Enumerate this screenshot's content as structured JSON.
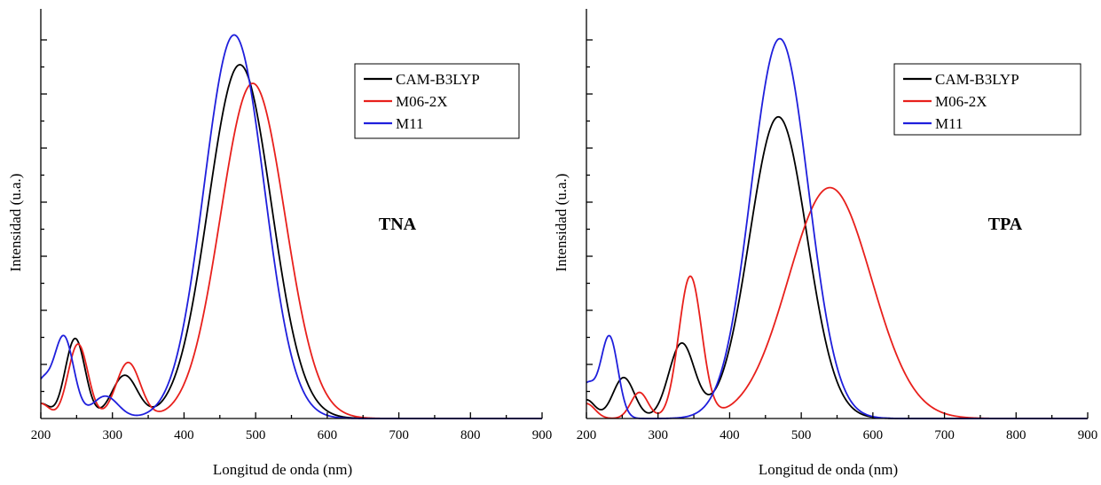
{
  "chart_data": [
    {
      "type": "line",
      "label": "TNA",
      "xlabel": "Longitud de onda (nm)",
      "ylabel": "Intensidad (u.a.)",
      "xlim": [
        200,
        900
      ],
      "ylim": [
        0,
        1.1
      ],
      "xticks": [
        200,
        300,
        400,
        500,
        600,
        700,
        800,
        900
      ],
      "y_tick_labels_shown": false,
      "legend_position": "top-right",
      "series": [
        {
          "name": "CAM-B3LYP",
          "color": "#000000",
          "peaks": [
            {
              "center": 248,
              "height": 0.215,
              "sigma": 14
            },
            {
              "center": 317,
              "height": 0.115,
              "sigma": 18
            },
            {
              "center": 478,
              "height": 0.95,
              "sigma": 44
            }
          ],
          "baseline": 0.04
        },
        {
          "name": "M06-2X",
          "color": "#e8201c",
          "peaks": [
            {
              "center": 252,
              "height": 0.2,
              "sigma": 14
            },
            {
              "center": 322,
              "height": 0.15,
              "sigma": 17
            },
            {
              "center": 496,
              "height": 0.9,
              "sigma": 45
            }
          ],
          "baseline": 0.04
        },
        {
          "name": "M11",
          "color": "#1f1fdc",
          "peaks": [
            {
              "center": 232,
              "height": 0.22,
              "sigma": 14
            },
            {
              "center": 290,
              "height": 0.06,
              "sigma": 18
            },
            {
              "center": 470,
              "height": 1.03,
              "sigma": 42
            }
          ],
          "baseline": 0.09
        }
      ]
    },
    {
      "type": "line",
      "label": "TPA",
      "xlabel": "Longitud de onda (nm)",
      "ylabel": "Intensidad (u.a.)",
      "xlim": [
        200,
        900
      ],
      "ylim": [
        0,
        1.1
      ],
      "xticks": [
        200,
        300,
        400,
        500,
        600,
        700,
        800,
        900
      ],
      "y_tick_labels_shown": false,
      "legend_position": "top-right",
      "series": [
        {
          "name": "CAM-B3LYP",
          "color": "#000000",
          "peaks": [
            {
              "center": 252,
              "height": 0.11,
              "sigma": 15
            },
            {
              "center": 333,
              "height": 0.2,
              "sigma": 18
            },
            {
              "center": 468,
              "height": 0.81,
              "sigma": 40
            }
          ],
          "baseline": 0.05
        },
        {
          "name": "M06-2X",
          "color": "#e8201c",
          "peaks": [
            {
              "center": 274,
              "height": 0.07,
              "sigma": 12
            },
            {
              "center": 345,
              "height": 0.38,
              "sigma": 16
            },
            {
              "center": 540,
              "height": 0.62,
              "sigma": 58
            }
          ],
          "baseline": 0.04
        },
        {
          "name": "M11",
          "color": "#1f1fdc",
          "peaks": [
            {
              "center": 232,
              "height": 0.22,
              "sigma": 12
            },
            {
              "center": 470,
              "height": 1.02,
              "sigma": 40
            }
          ],
          "baseline": 0.09
        }
      ]
    }
  ]
}
